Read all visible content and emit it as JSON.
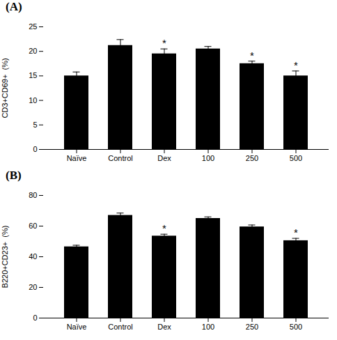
{
  "chart_data": [
    {
      "type": "bar",
      "title": "(A)",
      "categories": [
        "Naïve",
        "Control",
        "Dex",
        "100",
        "250",
        "500"
      ],
      "values": [
        15.0,
        21.2,
        19.5,
        20.5,
        17.5,
        15.0
      ],
      "errors": [
        0.8,
        1.2,
        1.0,
        0.5,
        0.5,
        1.0
      ],
      "annotations": [
        {
          "x": "Dex",
          "text": "*"
        },
        {
          "x": "250",
          "text": "*"
        },
        {
          "x": "500",
          "text": "*"
        }
      ],
      "y_label": "CD3+CD69+  (%)",
      "color": "#000000",
      "ylim": [
        0,
        25
      ],
      "yticks": [
        0,
        5,
        10,
        15,
        20,
        25
      ]
    },
    {
      "type": "bar",
      "title": "(B)",
      "categories": [
        "Naïve",
        "Control",
        "Dex",
        "100",
        "250",
        "500"
      ],
      "values": [
        46.5,
        67.0,
        53.5,
        65.0,
        59.5,
        50.5
      ],
      "errors": [
        1.0,
        1.5,
        1.2,
        1.0,
        1.2,
        1.5
      ],
      "annotations": [
        {
          "x": "Dex",
          "text": "*"
        },
        {
          "x": "500",
          "text": "*"
        }
      ],
      "y_label": "B220+CD23+  (%)",
      "color": "#000000",
      "ylim": [
        0,
        80
      ],
      "yticks": [
        0,
        20,
        40,
        60,
        80
      ]
    }
  ]
}
